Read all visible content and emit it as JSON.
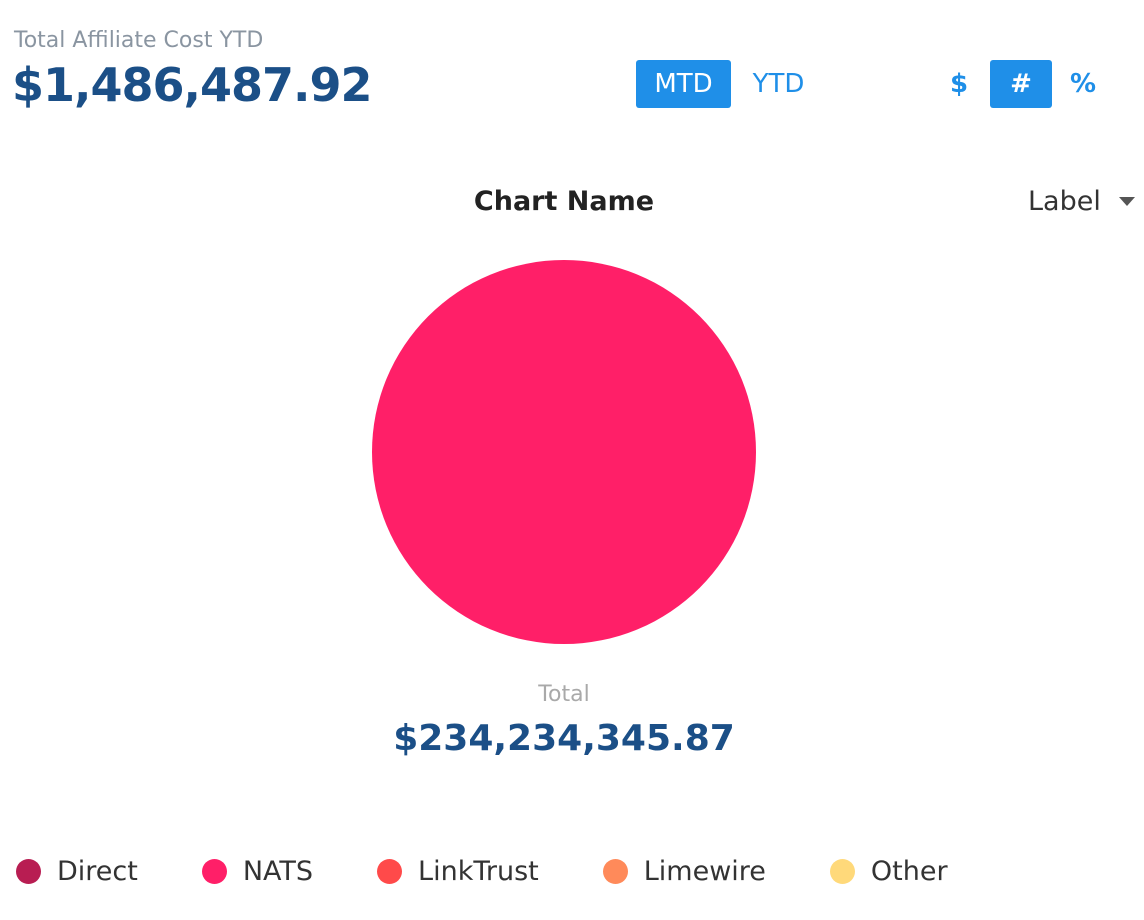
{
  "summary": {
    "label": "Total Affiliate Cost YTD",
    "value": "$1,486,487.92"
  },
  "period_toggle": {
    "options": [
      {
        "label": "MTD",
        "active": true
      },
      {
        "label": "YTD",
        "active": false
      }
    ]
  },
  "unit_toggle": {
    "options": [
      {
        "label": "$",
        "active": false
      },
      {
        "label": "#",
        "active": true
      },
      {
        "label": "%",
        "active": false
      }
    ]
  },
  "label_dropdown": {
    "selected": "Label"
  },
  "colors": {
    "accent": "#1f8fe8",
    "value_text": "#1b4f87"
  },
  "chart_data": {
    "type": "pie",
    "title": "Chart Name",
    "total_label": "Total",
    "total_value": "$234,234,345.87",
    "legend_position": "bottom",
    "slices": [
      {
        "name": "Direct",
        "value": 0,
        "color": "#b81d52"
      },
      {
        "name": "NATS",
        "value": 100,
        "color": "#ff1f68"
      },
      {
        "name": "LinkTrust",
        "value": 0,
        "color": "#ff4a4a"
      },
      {
        "name": "Limewire",
        "value": 0,
        "color": "#ff8a5a"
      },
      {
        "name": "Other",
        "value": 0,
        "color": "#ffd97a"
      }
    ]
  }
}
